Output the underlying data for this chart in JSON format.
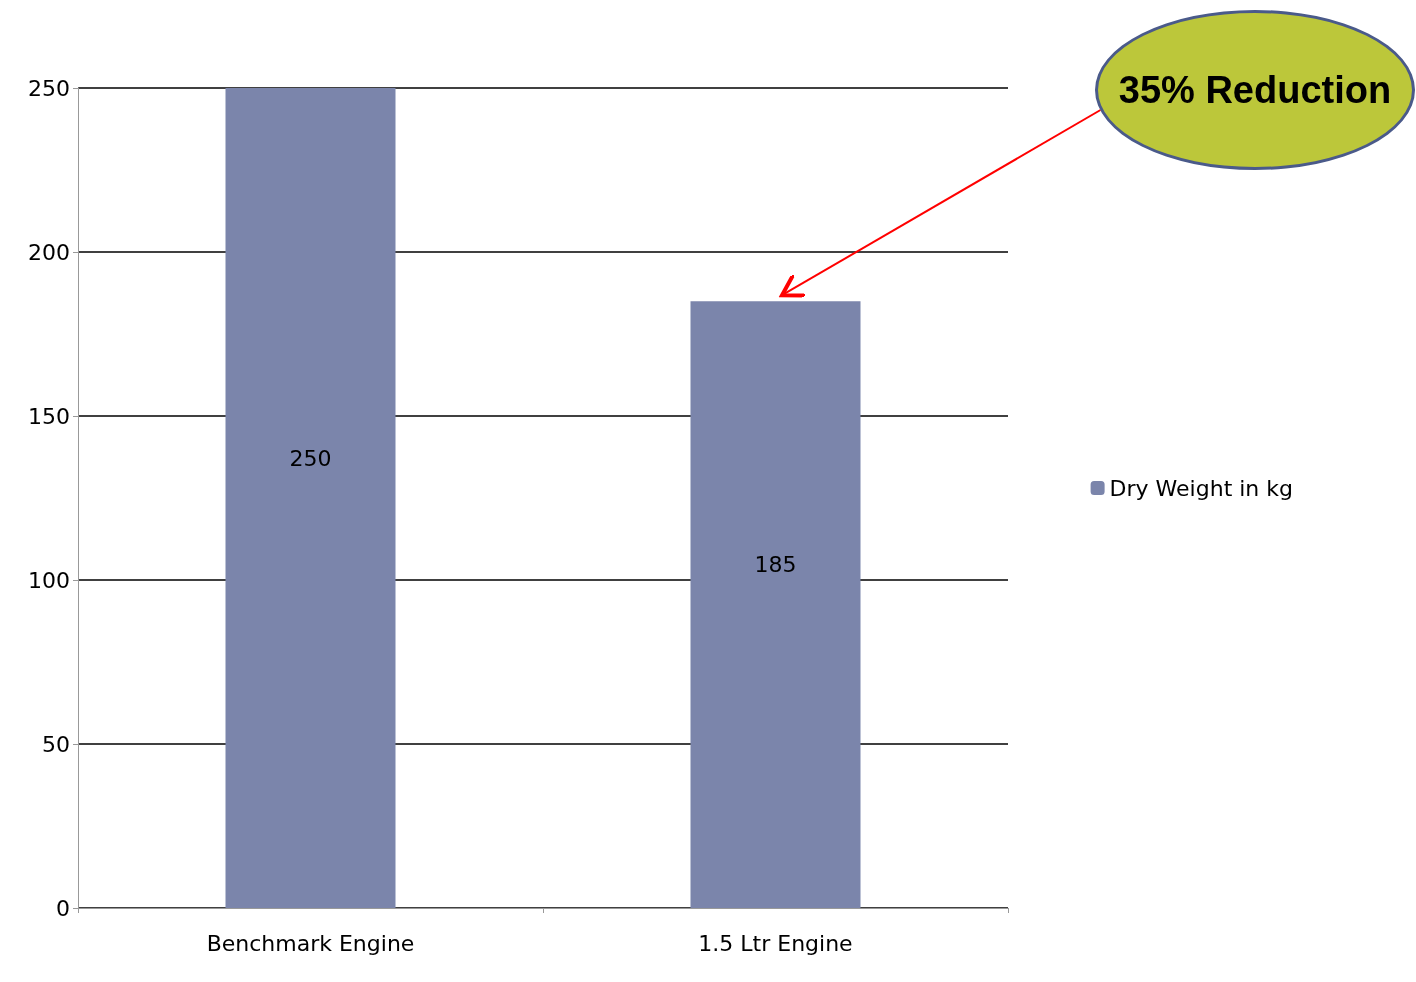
{
  "chart_data": {
    "type": "bar",
    "categories": [
      "Benchmark Engine",
      "1.5 Ltr Engine"
    ],
    "series": [
      {
        "name": "Dry Weight in kg",
        "color": "#7b85ab",
        "values": [
          250,
          185
        ]
      }
    ],
    "ylim": [
      0,
      250
    ],
    "yticks": [
      0,
      50,
      100,
      150,
      200,
      250
    ],
    "grid": "y",
    "legend": "right",
    "data_labels": true,
    "annotations": [
      {
        "text": "35% Reduction",
        "x": "1.5 Ltr Engine",
        "y": 185
      }
    ]
  }
}
